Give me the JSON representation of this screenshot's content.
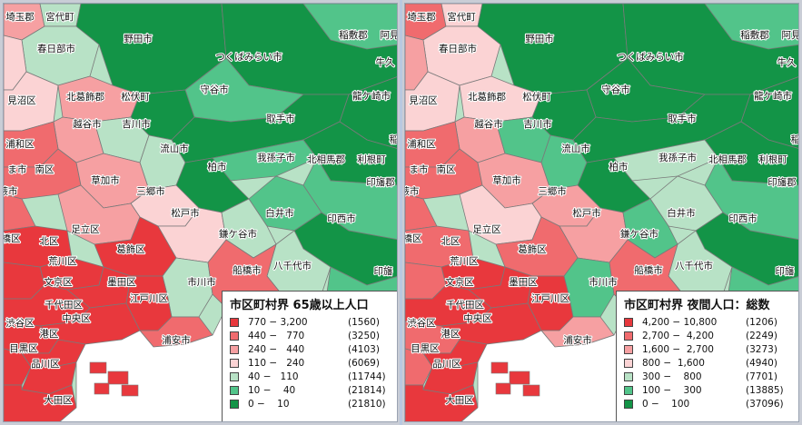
{
  "colors": {
    "c1": "#e8383d",
    "c2": "#f06b6e",
    "c3": "#f6a0a2",
    "c4": "#fbd3d4",
    "c5": "#b8e2c6",
    "c6": "#52c48a",
    "c7": "#139447",
    "sea": "#ffffff",
    "border": "#7a7a7a"
  },
  "left_map": {
    "legend": {
      "title": "市区町村界 65歳以上人口",
      "rows": [
        {
          "range": "770 − 3,200",
          "count": "(1560)"
        },
        {
          "range": "440 −   770",
          "count": "(3250)"
        },
        {
          "range": "240 −   440",
          "count": "(4103)"
        },
        {
          "range": "110 −   240",
          "count": "(6069)"
        },
        {
          "range": "40 −   110",
          "count": "(11744)"
        },
        {
          "range": "10 −    40",
          "count": "(21814)"
        },
        {
          "range": "0 −    10",
          "count": "(21810)"
        }
      ]
    },
    "labels": {
      "l1": "埼玉郡",
      "l2": "宮代町",
      "l3": "春日部市",
      "l4": "野田市",
      "l5": "稲敷郡",
      "l6": "阿見",
      "l7": "つくばみらい市",
      "l8": "牛久",
      "l9": "見沼区",
      "l10": "北葛飾郡",
      "l11": "松伏町",
      "l12": "守谷市",
      "l13": "龍ケ崎市",
      "l14": "越谷市",
      "l15": "吉川市",
      "l16": "取手市",
      "l17": "浦和区",
      "l18": "流山市",
      "l19": "我孫子市",
      "l20": "北相馬郡",
      "l21": "利根町",
      "l22": "柏市",
      "l23": "稲",
      "l24": "南区",
      "l25": "草加市",
      "l26": "印旛郡",
      "l27": "三郷市",
      "l28": "蕨市",
      "l29": "松戸市",
      "l30": "白井市",
      "l31": "印西市",
      "l32": "足立区",
      "l33": "北区",
      "l34": "鎌ケ谷市",
      "l35": "葛飾区",
      "l36": "荒川区",
      "l37": "八千代市",
      "l38": "印旛",
      "l39": "文京区",
      "l40": "墨田区",
      "l41": "市川市",
      "l42": "船橋市",
      "l43": "千代田区",
      "l44": "江戸川区",
      "l45": "中央区",
      "l46": "渋谷区",
      "l47": "港区",
      "l48": "浦安市",
      "l49": "目黒区",
      "l50": "品川区",
      "l51": "大田区",
      "l52": "ま市",
      "l53": "橋区"
    }
  },
  "right_map": {
    "legend": {
      "title": "市区町村界 夜間人口：総数",
      "rows": [
        {
          "range": "4,200 − 10,800",
          "count": "(1206)"
        },
        {
          "range": "2,700 −  4,200",
          "count": "(2249)"
        },
        {
          "range": "1,600 −  2,700",
          "count": "(3273)"
        },
        {
          "range": "800 −  1,600",
          "count": "(4940)"
        },
        {
          "range": "300 −    800",
          "count": "(7701)"
        },
        {
          "range": "100 −    300",
          "count": "(13885)"
        },
        {
          "range": "0 −    100",
          "count": "(37096)"
        }
      ]
    },
    "labels": {
      "l1": "埼玉郡",
      "l2": "宮代町",
      "l3": "春日部市",
      "l4": "野田市",
      "l5": "稲敷郡",
      "l6": "阿見",
      "l7": "つくばみらい市",
      "l8": "牛久",
      "l9": "見沼区",
      "l10": "北葛飾郡",
      "l11": "松伏町",
      "l12": "守谷市",
      "l13": "龍ケ崎市",
      "l14": "越谷市",
      "l15": "吉川市",
      "l16": "取手市",
      "l17": "浦和区",
      "l18": "流山市",
      "l19": "我孫子市",
      "l20": "北相馬郡",
      "l21": "利根町",
      "l22": "柏市",
      "l23": "稲",
      "l24": "南区",
      "l25": "草加市",
      "l26": "印旛郡",
      "l27": "三郷市",
      "l28": "蕨市",
      "l29": "松戸市",
      "l30": "白井市",
      "l31": "印西市",
      "l32": "足立区",
      "l33": "北区",
      "l34": "鎌ケ谷市",
      "l35": "葛飾区",
      "l36": "荒川区",
      "l37": "八千代市",
      "l38": "印旛",
      "l39": "文京区",
      "l40": "墨田区",
      "l41": "市川市",
      "l42": "船橋市",
      "l43": "千代田区",
      "l44": "江戸川区",
      "l45": "中央区",
      "l46": "渋谷区",
      "l47": "港区",
      "l48": "浦安市",
      "l49": "目黒区",
      "l50": "品川区",
      "l51": "大田区",
      "l52": "ま市",
      "l53": "橋区"
    }
  }
}
